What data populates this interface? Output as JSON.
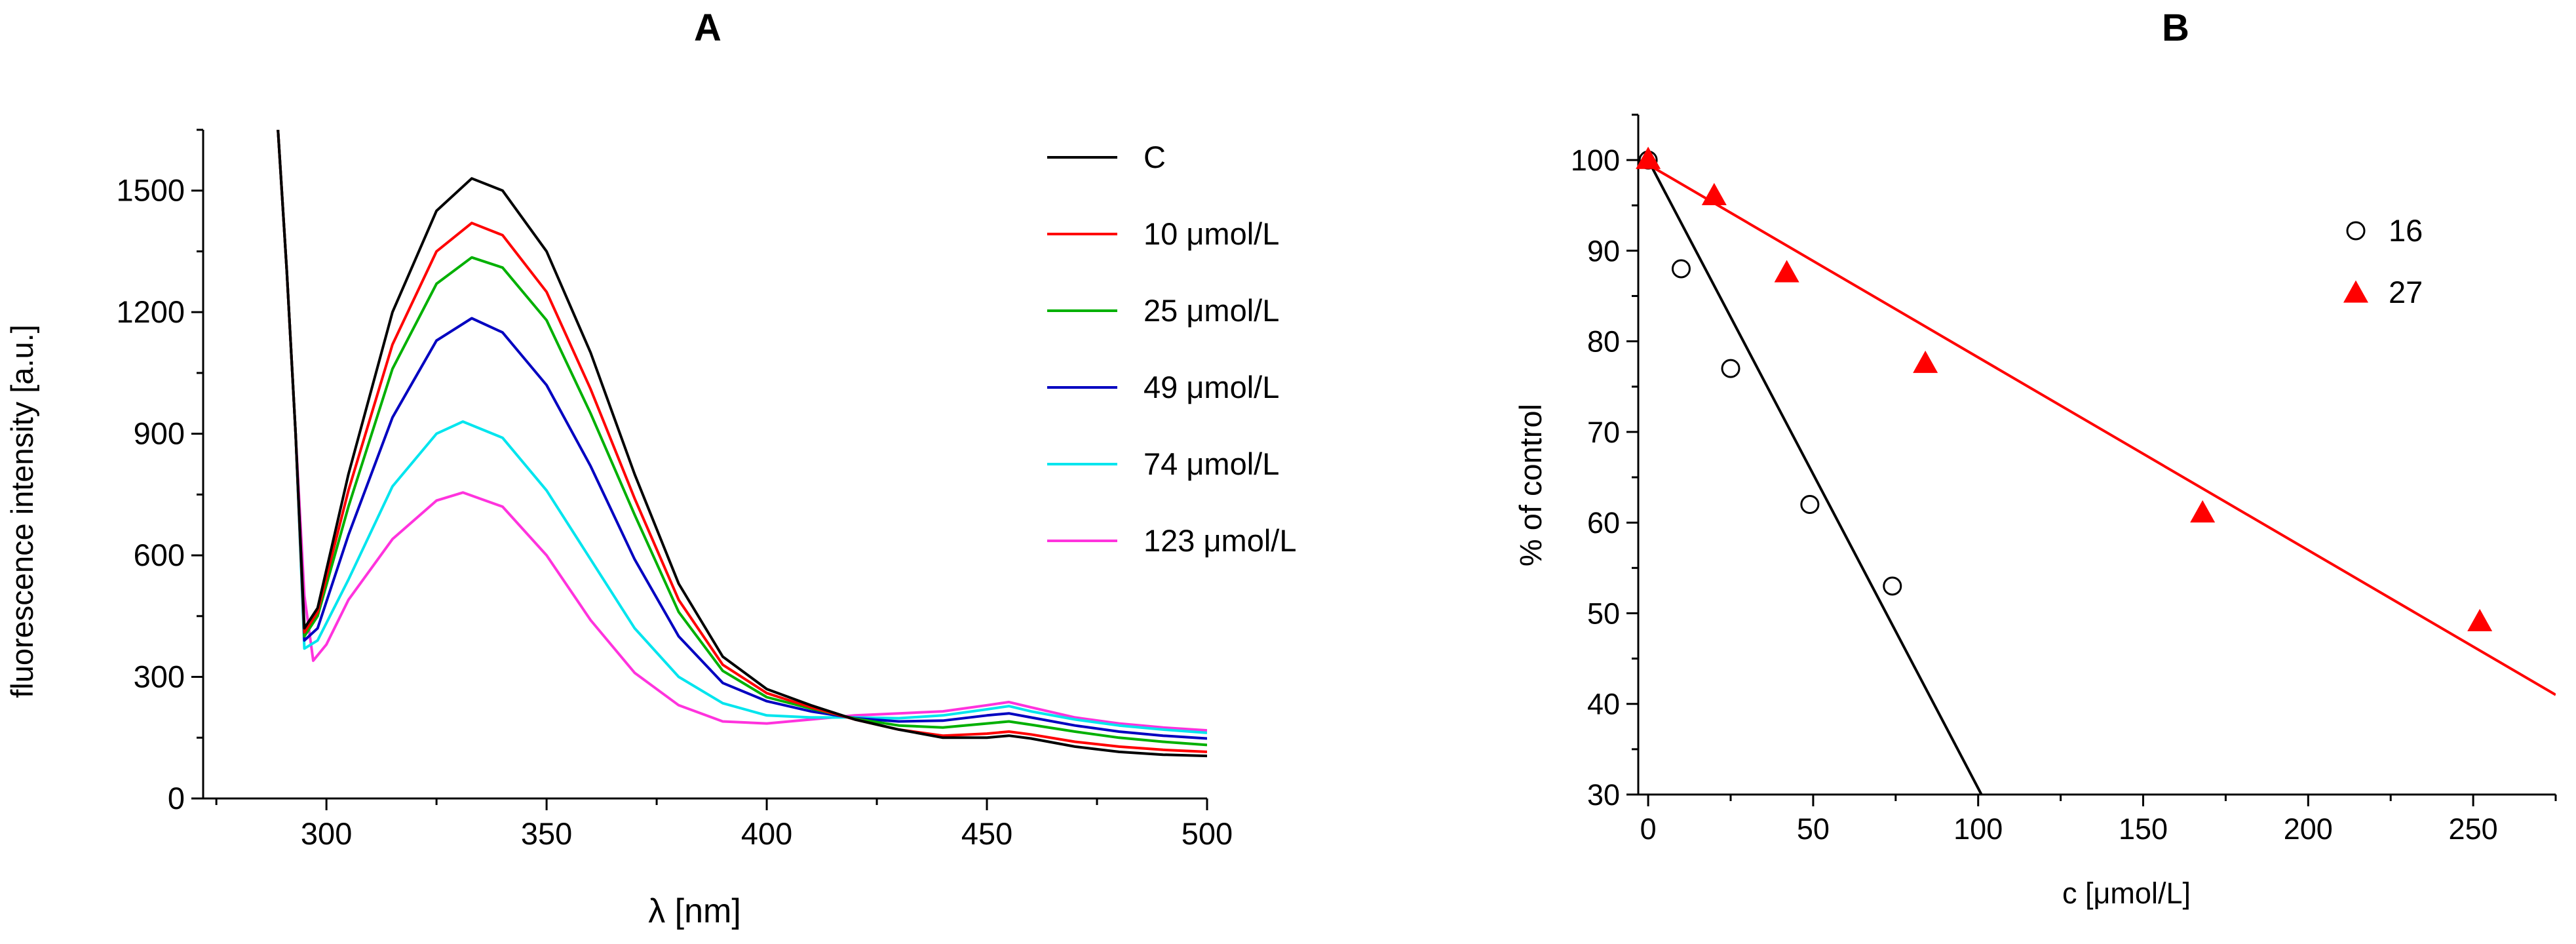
{
  "chart_data": [
    {
      "type": "line",
      "panel_label": "A",
      "xlabel": "λ [nm]",
      "ylabel": "fluorescence intensity [a.u.]",
      "xlim": [
        272,
        500
      ],
      "ylim": [
        0,
        1650
      ],
      "xticks": [
        300,
        350,
        400,
        450,
        500
      ],
      "yticks": [
        0,
        300,
        600,
        900,
        1200,
        1500
      ],
      "legend_position": "top-right",
      "series": [
        {
          "name": "C",
          "color": "#000000",
          "points": [
            [
              289,
              1650
            ],
            [
              291,
              1300
            ],
            [
              293,
              900
            ],
            [
              295,
              420
            ],
            [
              298,
              470
            ],
            [
              305,
              800
            ],
            [
              315,
              1200
            ],
            [
              325,
              1450
            ],
            [
              333,
              1530
            ],
            [
              340,
              1500
            ],
            [
              350,
              1350
            ],
            [
              360,
              1100
            ],
            [
              370,
              800
            ],
            [
              380,
              530
            ],
            [
              390,
              350
            ],
            [
              400,
              270
            ],
            [
              410,
              230
            ],
            [
              420,
              195
            ],
            [
              430,
              170
            ],
            [
              440,
              150
            ],
            [
              450,
              150
            ],
            [
              455,
              155
            ],
            [
              460,
              148
            ],
            [
              470,
              128
            ],
            [
              480,
              115
            ],
            [
              490,
              108
            ],
            [
              500,
              105
            ]
          ]
        },
        {
          "name": "10 μmol/L",
          "color": "#ff0000",
          "points": [
            [
              289,
              1650
            ],
            [
              291,
              1300
            ],
            [
              293,
              900
            ],
            [
              295,
              410
            ],
            [
              298,
              460
            ],
            [
              305,
              760
            ],
            [
              315,
              1120
            ],
            [
              325,
              1350
            ],
            [
              333,
              1420
            ],
            [
              340,
              1390
            ],
            [
              350,
              1250
            ],
            [
              360,
              1010
            ],
            [
              370,
              740
            ],
            [
              380,
              490
            ],
            [
              390,
              330
            ],
            [
              400,
              260
            ],
            [
              410,
              225
            ],
            [
              420,
              195
            ],
            [
              430,
              170
            ],
            [
              440,
              155
            ],
            [
              450,
              160
            ],
            [
              455,
              165
            ],
            [
              460,
              158
            ],
            [
              470,
              140
            ],
            [
              480,
              128
            ],
            [
              490,
              120
            ],
            [
              500,
              115
            ]
          ]
        },
        {
          "name": "25 μmol/L",
          "color": "#00b000",
          "points": [
            [
              289,
              1650
            ],
            [
              291,
              1300
            ],
            [
              293,
              900
            ],
            [
              295,
              400
            ],
            [
              298,
              450
            ],
            [
              305,
              720
            ],
            [
              315,
              1060
            ],
            [
              325,
              1270
            ],
            [
              333,
              1335
            ],
            [
              340,
              1310
            ],
            [
              350,
              1180
            ],
            [
              360,
              950
            ],
            [
              370,
              700
            ],
            [
              380,
              460
            ],
            [
              390,
              315
            ],
            [
              400,
              250
            ],
            [
              410,
              222
            ],
            [
              420,
              197
            ],
            [
              430,
              180
            ],
            [
              440,
              175
            ],
            [
              450,
              185
            ],
            [
              455,
              190
            ],
            [
              460,
              182
            ],
            [
              470,
              165
            ],
            [
              480,
              150
            ],
            [
              490,
              140
            ],
            [
              500,
              132
            ]
          ]
        },
        {
          "name": "49 μmol/L",
          "color": "#0000c0",
          "points": [
            [
              289,
              1650
            ],
            [
              291,
              1300
            ],
            [
              293,
              900
            ],
            [
              295,
              390
            ],
            [
              298,
              420
            ],
            [
              305,
              650
            ],
            [
              315,
              940
            ],
            [
              325,
              1130
            ],
            [
              333,
              1185
            ],
            [
              340,
              1150
            ],
            [
              350,
              1020
            ],
            [
              360,
              820
            ],
            [
              370,
              590
            ],
            [
              380,
              400
            ],
            [
              390,
              285
            ],
            [
              400,
              240
            ],
            [
              410,
              215
            ],
            [
              420,
              198
            ],
            [
              430,
              190
            ],
            [
              440,
              192
            ],
            [
              450,
              205
            ],
            [
              455,
              210
            ],
            [
              460,
              200
            ],
            [
              470,
              180
            ],
            [
              480,
              165
            ],
            [
              490,
              155
            ],
            [
              500,
              148
            ]
          ]
        },
        {
          "name": "74 μmol/L",
          "color": "#00e5ee",
          "points": [
            [
              289,
              1650
            ],
            [
              291,
              1300
            ],
            [
              293,
              900
            ],
            [
              295,
              370
            ],
            [
              298,
              390
            ],
            [
              305,
              540
            ],
            [
              315,
              770
            ],
            [
              325,
              900
            ],
            [
              331,
              930
            ],
            [
              340,
              890
            ],
            [
              350,
              760
            ],
            [
              360,
              590
            ],
            [
              370,
              420
            ],
            [
              380,
              300
            ],
            [
              390,
              235
            ],
            [
              400,
              205
            ],
            [
              410,
              200
            ],
            [
              420,
              200
            ],
            [
              430,
              198
            ],
            [
              440,
              205
            ],
            [
              450,
              220
            ],
            [
              455,
              228
            ],
            [
              460,
              215
            ],
            [
              470,
              195
            ],
            [
              480,
              180
            ],
            [
              490,
              170
            ],
            [
              500,
              162
            ]
          ]
        },
        {
          "name": "123 μmol/L",
          "color": "#ff33dd",
          "points": [
            [
              289,
              1650
            ],
            [
              291,
              1300
            ],
            [
              293,
              900
            ],
            [
              295,
              500
            ],
            [
              297,
              340
            ],
            [
              300,
              380
            ],
            [
              305,
              490
            ],
            [
              315,
              640
            ],
            [
              325,
              735
            ],
            [
              331,
              755
            ],
            [
              340,
              720
            ],
            [
              350,
              600
            ],
            [
              360,
              440
            ],
            [
              370,
              310
            ],
            [
              380,
              230
            ],
            [
              390,
              190
            ],
            [
              400,
              185
            ],
            [
              410,
              195
            ],
            [
              420,
              205
            ],
            [
              430,
              210
            ],
            [
              440,
              215
            ],
            [
              450,
              230
            ],
            [
              455,
              238
            ],
            [
              460,
              225
            ],
            [
              470,
              200
            ],
            [
              480,
              185
            ],
            [
              490,
              175
            ],
            [
              500,
              168
            ]
          ]
        }
      ]
    },
    {
      "type": "scatter",
      "panel_label": "B",
      "xlabel": "c [μmol/L]",
      "ylabel": "% of control",
      "xlim": [
        -3,
        275
      ],
      "ylim": [
        30,
        105
      ],
      "xticks": [
        0,
        50,
        100,
        150,
        200,
        250
      ],
      "yticks": [
        30,
        40,
        50,
        60,
        70,
        80,
        90,
        100
      ],
      "legend_position": "top-right",
      "series": [
        {
          "name": "16",
          "marker": "open-circle",
          "color": "#000000",
          "x": [
            0,
            10,
            25,
            49,
            74
          ],
          "y": [
            100,
            88,
            77,
            62,
            53
          ],
          "fit_line": {
            "x": [
              0,
              101
            ],
            "y": [
              100,
              30
            ]
          }
        },
        {
          "name": "27",
          "marker": "filled-triangle",
          "color": "#ff0000",
          "x": [
            0,
            20,
            42,
            84,
            168,
            252
          ],
          "y": [
            100,
            96,
            87.5,
            77.5,
            61,
            49
          ],
          "fit_line": {
            "x": [
              0,
              275
            ],
            "y": [
              99.5,
              41
            ]
          }
        }
      ]
    }
  ]
}
